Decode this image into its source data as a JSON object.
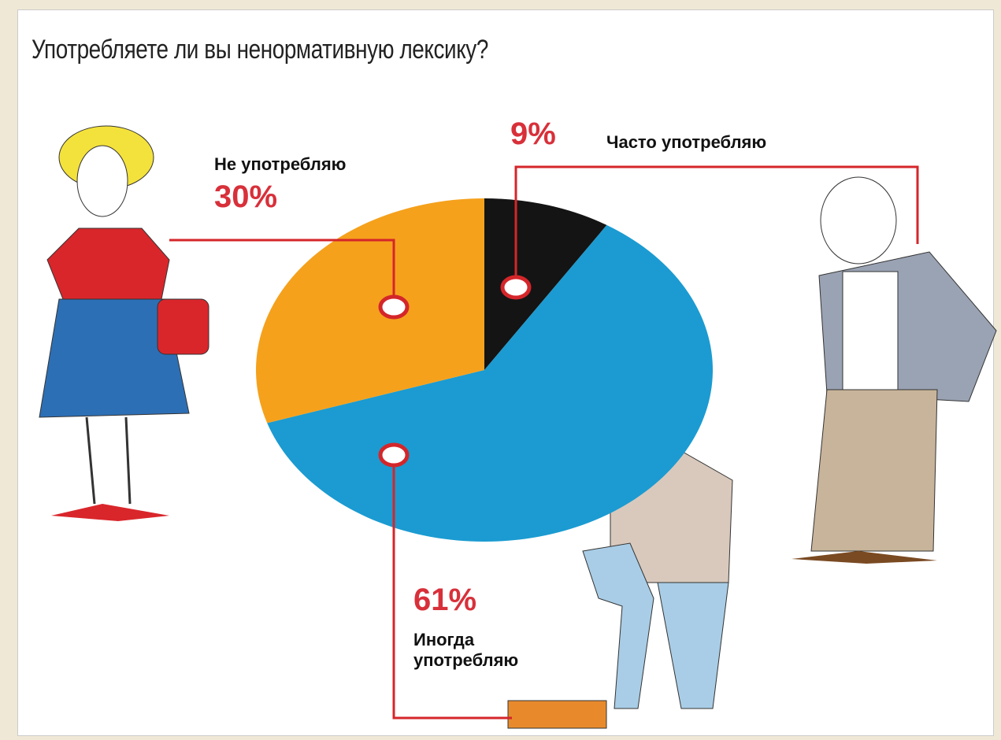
{
  "chart_data": {
    "type": "pie",
    "title": "Употребляете ли вы ненормативную лексику?",
    "categories": [
      "Часто употребляю",
      "Иногда употребляю",
      "Не употребляю"
    ],
    "values": [
      9,
      61,
      30
    ],
    "value_labels": [
      "9%",
      "61%",
      "30%"
    ],
    "colors": [
      "#141414",
      "#1b9bd1",
      "#f5a11c"
    ]
  }
}
